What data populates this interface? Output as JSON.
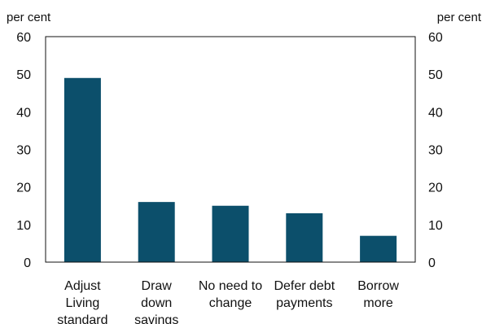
{
  "chart_data": {
    "type": "bar",
    "title": "",
    "xlabel": "",
    "ylabel": "",
    "y_unit_left": "per cent",
    "y_unit_right": "per cent",
    "categories": [
      [
        "Adjust",
        "Living",
        "standard"
      ],
      [
        "Draw",
        "down",
        "savings"
      ],
      [
        "No need to",
        "change"
      ],
      [
        "Defer debt",
        "payments"
      ],
      [
        "Borrow",
        "more"
      ]
    ],
    "values": [
      49,
      16,
      15,
      13,
      7
    ],
    "ylim": [
      0,
      60
    ],
    "yticks": [
      0,
      10,
      20,
      30,
      40,
      50,
      60
    ],
    "grid": false,
    "legend": "none",
    "bar_color": "#0c4f6b"
  }
}
